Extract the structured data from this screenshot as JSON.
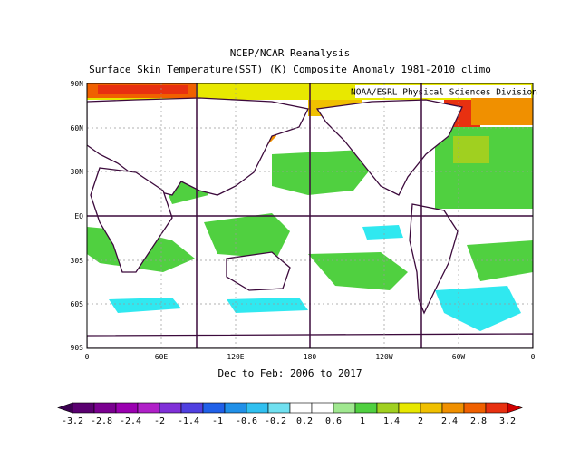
{
  "title": "NCEP/NCAR Reanalysis",
  "subtitle": "Surface Skin Temperature(SST) (K) Composite Anomaly 1981-2010 climo",
  "credit": "NOAA/ESRL Physical Sciences Division",
  "date_range": "Dec to Feb: 2006 to 2017",
  "lat_labels": [
    "90N",
    "60N",
    "30N",
    "EQ",
    "30S",
    "60S",
    "90S"
  ],
  "lon_labels": [
    "0",
    "60E",
    "120E",
    "180",
    "120W",
    "60W",
    "0"
  ],
  "colorbar": {
    "ticks": [
      "-3.2",
      "-2.8",
      "-2.4",
      "-2",
      "-1.4",
      "-1",
      "-0.6",
      "-0.2",
      "0.2",
      "0.6",
      "1",
      "1.4",
      "2",
      "2.4",
      "2.8",
      "3.2"
    ],
    "colors": [
      "#3b0050",
      "#5a0070",
      "#7a0090",
      "#9a00b0",
      "#b020c8",
      "#8030d8",
      "#5040e0",
      "#2060e8",
      "#2090e8",
      "#30c0f0",
      "#70e0f0",
      "#ffffff",
      "#ffffff",
      "#a0e890",
      "#50d040",
      "#a0d020",
      "#e8e800",
      "#f0c000",
      "#f09000",
      "#f06000",
      "#e83010",
      "#d00000"
    ]
  },
  "colors": {
    "land_outline": "#3c0a3c",
    "positive_green": "#50d040",
    "positive_yellow": "#e8e800",
    "positive_orange": "#f09000",
    "positive_red": "#e83010",
    "negative_cyan": "#30e8f0"
  }
}
